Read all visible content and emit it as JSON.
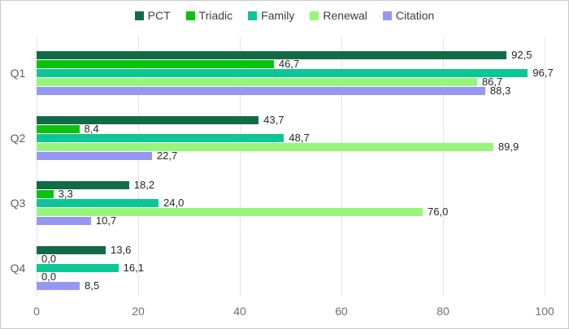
{
  "frame": {
    "background": "#ffffff",
    "border_color": "#c9c9c9"
  },
  "legend": {
    "position": "top-center",
    "items": [
      {
        "label": "PCT",
        "color": "#126B47"
      },
      {
        "label": "Triadic",
        "color": "#0CC20C"
      },
      {
        "label": "Family",
        "color": "#0CC795"
      },
      {
        "label": "Renewal",
        "color": "#98F57B"
      },
      {
        "label": "Citation",
        "color": "#9697F2"
      }
    ]
  },
  "chart_data": {
    "type": "bar",
    "orientation": "horizontal",
    "title": "",
    "xlabel": "",
    "ylabel": "",
    "categories": [
      "Q1",
      "Q2",
      "Q3",
      "Q4"
    ],
    "series": [
      {
        "name": "PCT",
        "color": "#126B47",
        "values": [
          92.5,
          43.7,
          18.2,
          13.6
        ]
      },
      {
        "name": "Triadic",
        "color": "#0CC20C",
        "values": [
          46.7,
          8.4,
          3.3,
          0.0
        ]
      },
      {
        "name": "Family",
        "color": "#0CC795",
        "values": [
          96.7,
          48.7,
          24.0,
          16.1
        ]
      },
      {
        "name": "Renewal",
        "color": "#98F57B",
        "values": [
          86.7,
          89.9,
          76.0,
          0.0
        ]
      },
      {
        "name": "Citation",
        "color": "#9697F2",
        "values": [
          88.3,
          22.7,
          10.7,
          8.5
        ]
      }
    ],
    "value_labels": {
      "shown": true,
      "decimals": 1,
      "decimal_separator": ","
    },
    "x_axis": {
      "min": 0,
      "max": 100,
      "ticks": [
        0,
        20,
        40,
        60,
        80,
        100
      ],
      "tick_labels": [
        "0",
        "20",
        "40",
        "60",
        "80",
        "100"
      ]
    },
    "grid": "vertical",
    "legend_position": "top"
  },
  "styles": {
    "grid_color": "#e4e4e4",
    "axis_text_color": "#6e6e6e",
    "category_text_color": "#5e5e5c",
    "value_label_color": "#252423",
    "legend_text_color": "#3d3d3c"
  }
}
